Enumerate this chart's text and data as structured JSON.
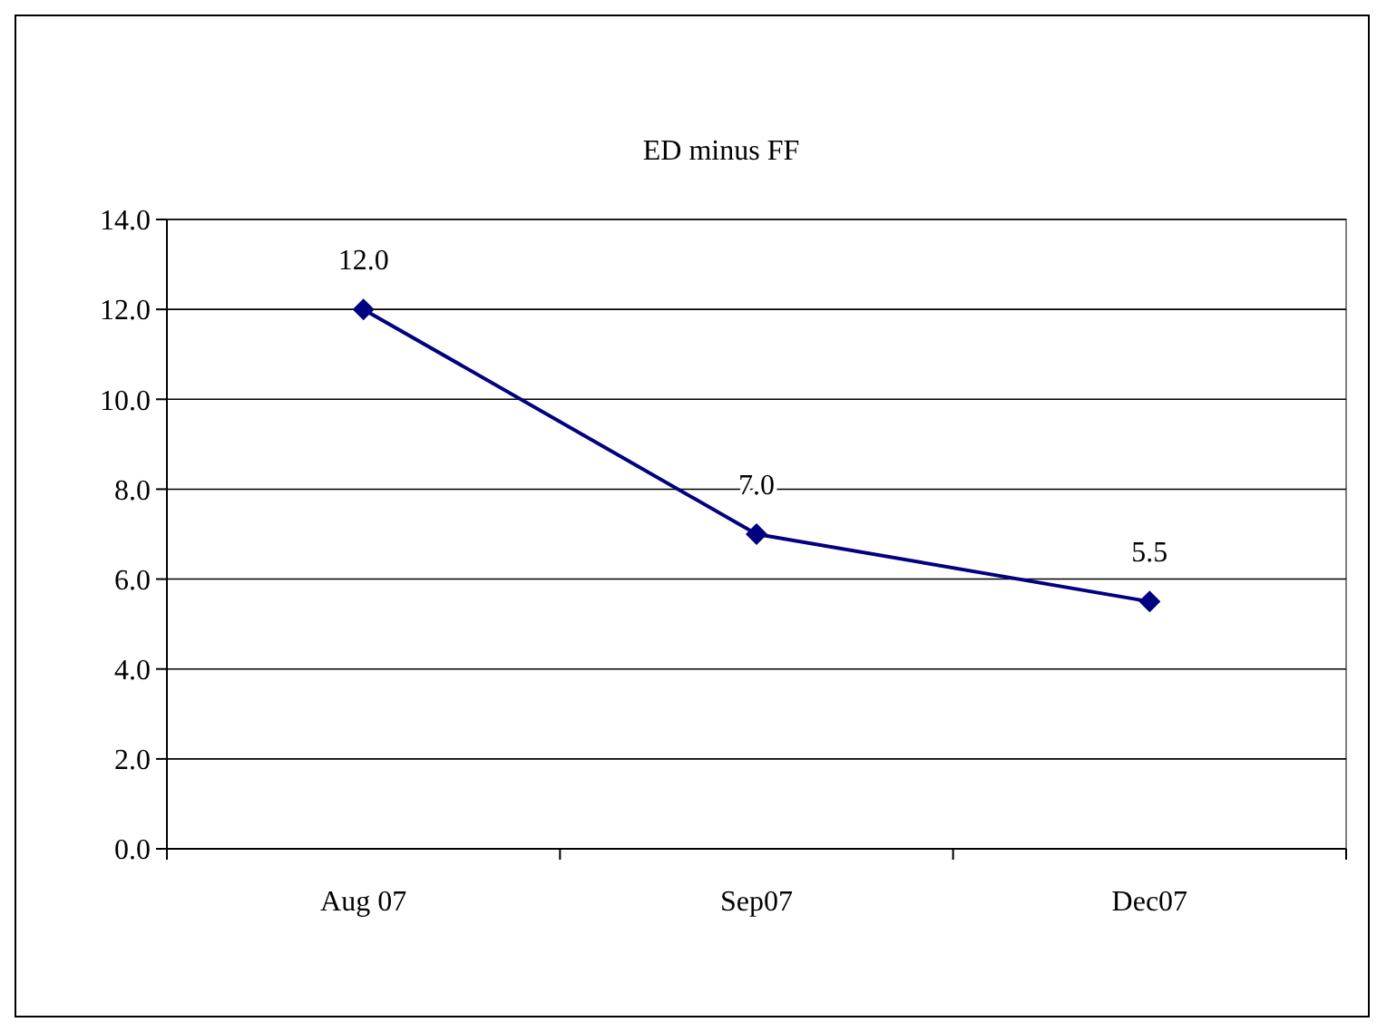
{
  "chart_data": {
    "type": "line",
    "title": "ED minus FF",
    "categories": [
      "Aug 07",
      "Sep07",
      "Dec07"
    ],
    "series": [
      {
        "color": "#000080",
        "values": [
          12,
          7,
          5.5
        ],
        "value_labels": [
          "12.0",
          "7.0",
          "5.5"
        ]
      }
    ],
    "ylim": [
      0,
      14
    ],
    "yticks": [
      {
        "value": 0,
        "label": "0.0"
      },
      {
        "value": 2,
        "label": "2.0"
      },
      {
        "value": 4,
        "label": "4.0"
      },
      {
        "value": 6,
        "label": "6.0"
      },
      {
        "value": 8,
        "label": "8.0"
      },
      {
        "value": 10,
        "label": "10.0"
      },
      {
        "value": 12,
        "label": "12.0"
      },
      {
        "value": 14,
        "label": "14.0"
      }
    ],
    "grid": "y",
    "marker": "diamond",
    "line_style": "solid"
  }
}
